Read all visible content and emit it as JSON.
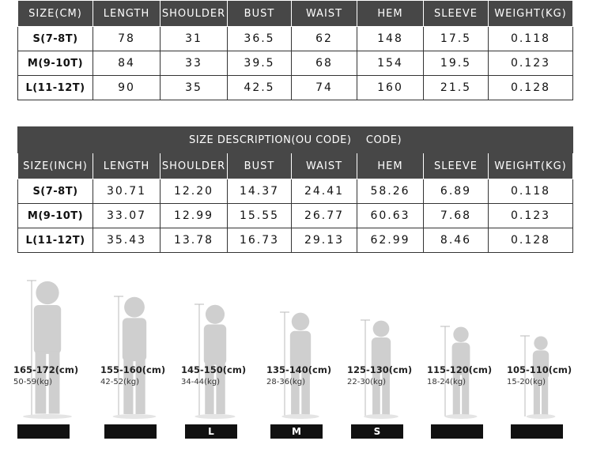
{
  "tables": [
    {
      "header": [
        "SIZE(CM)",
        "LENGTH",
        "SHOULDER",
        "BUST",
        "WAIST",
        "HEM",
        "SLEEVE",
        "WEIGHT(KG)"
      ],
      "rows": [
        [
          "S(7-8T)",
          "78",
          "31",
          "36.5",
          "62",
          "148",
          "17.5",
          "0.118"
        ],
        [
          "M(9-10T)",
          "84",
          "33",
          "39.5",
          "68",
          "154",
          "19.5",
          "0.123"
        ],
        [
          "L(11-12T)",
          "90",
          "35",
          "42.5",
          "74",
          "160",
          "21.5",
          "0.128"
        ]
      ]
    },
    {
      "title": "SIZE DESCRIPTION(OU CODE)    CODE)",
      "header": [
        "SIZE(INCH)",
        "LENGTH",
        "SHOULDER",
        "BUST",
        "WAIST",
        "HEM",
        "SLEEVE",
        "WEIGHT(KG)"
      ],
      "rows": [
        [
          "S(7-8T)",
          "30.71",
          "12.20",
          "14.37",
          "24.41",
          "58.26",
          "6.89",
          "0.118"
        ],
        [
          "M(9-10T)",
          "33.07",
          "12.99",
          "15.55",
          "26.77",
          "60.63",
          "7.68",
          "0.123"
        ],
        [
          "L(11-12T)",
          "35.43",
          "13.78",
          "16.73",
          "29.13",
          "62.99",
          "8.46",
          "0.128"
        ]
      ]
    }
  ],
  "figures": [
    {
      "height": "165-172(cm)",
      "weight": "50-59(kg)"
    },
    {
      "height": "155-160(cm)",
      "weight": "42-52(kg)"
    },
    {
      "height": "145-150(cm)",
      "weight": "34-44(kg)",
      "badge": "L"
    },
    {
      "height": "135-140(cm)",
      "weight": "28-36(kg)",
      "badge": "M"
    },
    {
      "height": "125-130(cm)",
      "weight": "22-30(kg)",
      "badge": "S"
    },
    {
      "height": "115-120(cm)",
      "weight": "18-24(kg)"
    },
    {
      "height": "105-110(cm)",
      "weight": "15-20(kg)"
    }
  ]
}
